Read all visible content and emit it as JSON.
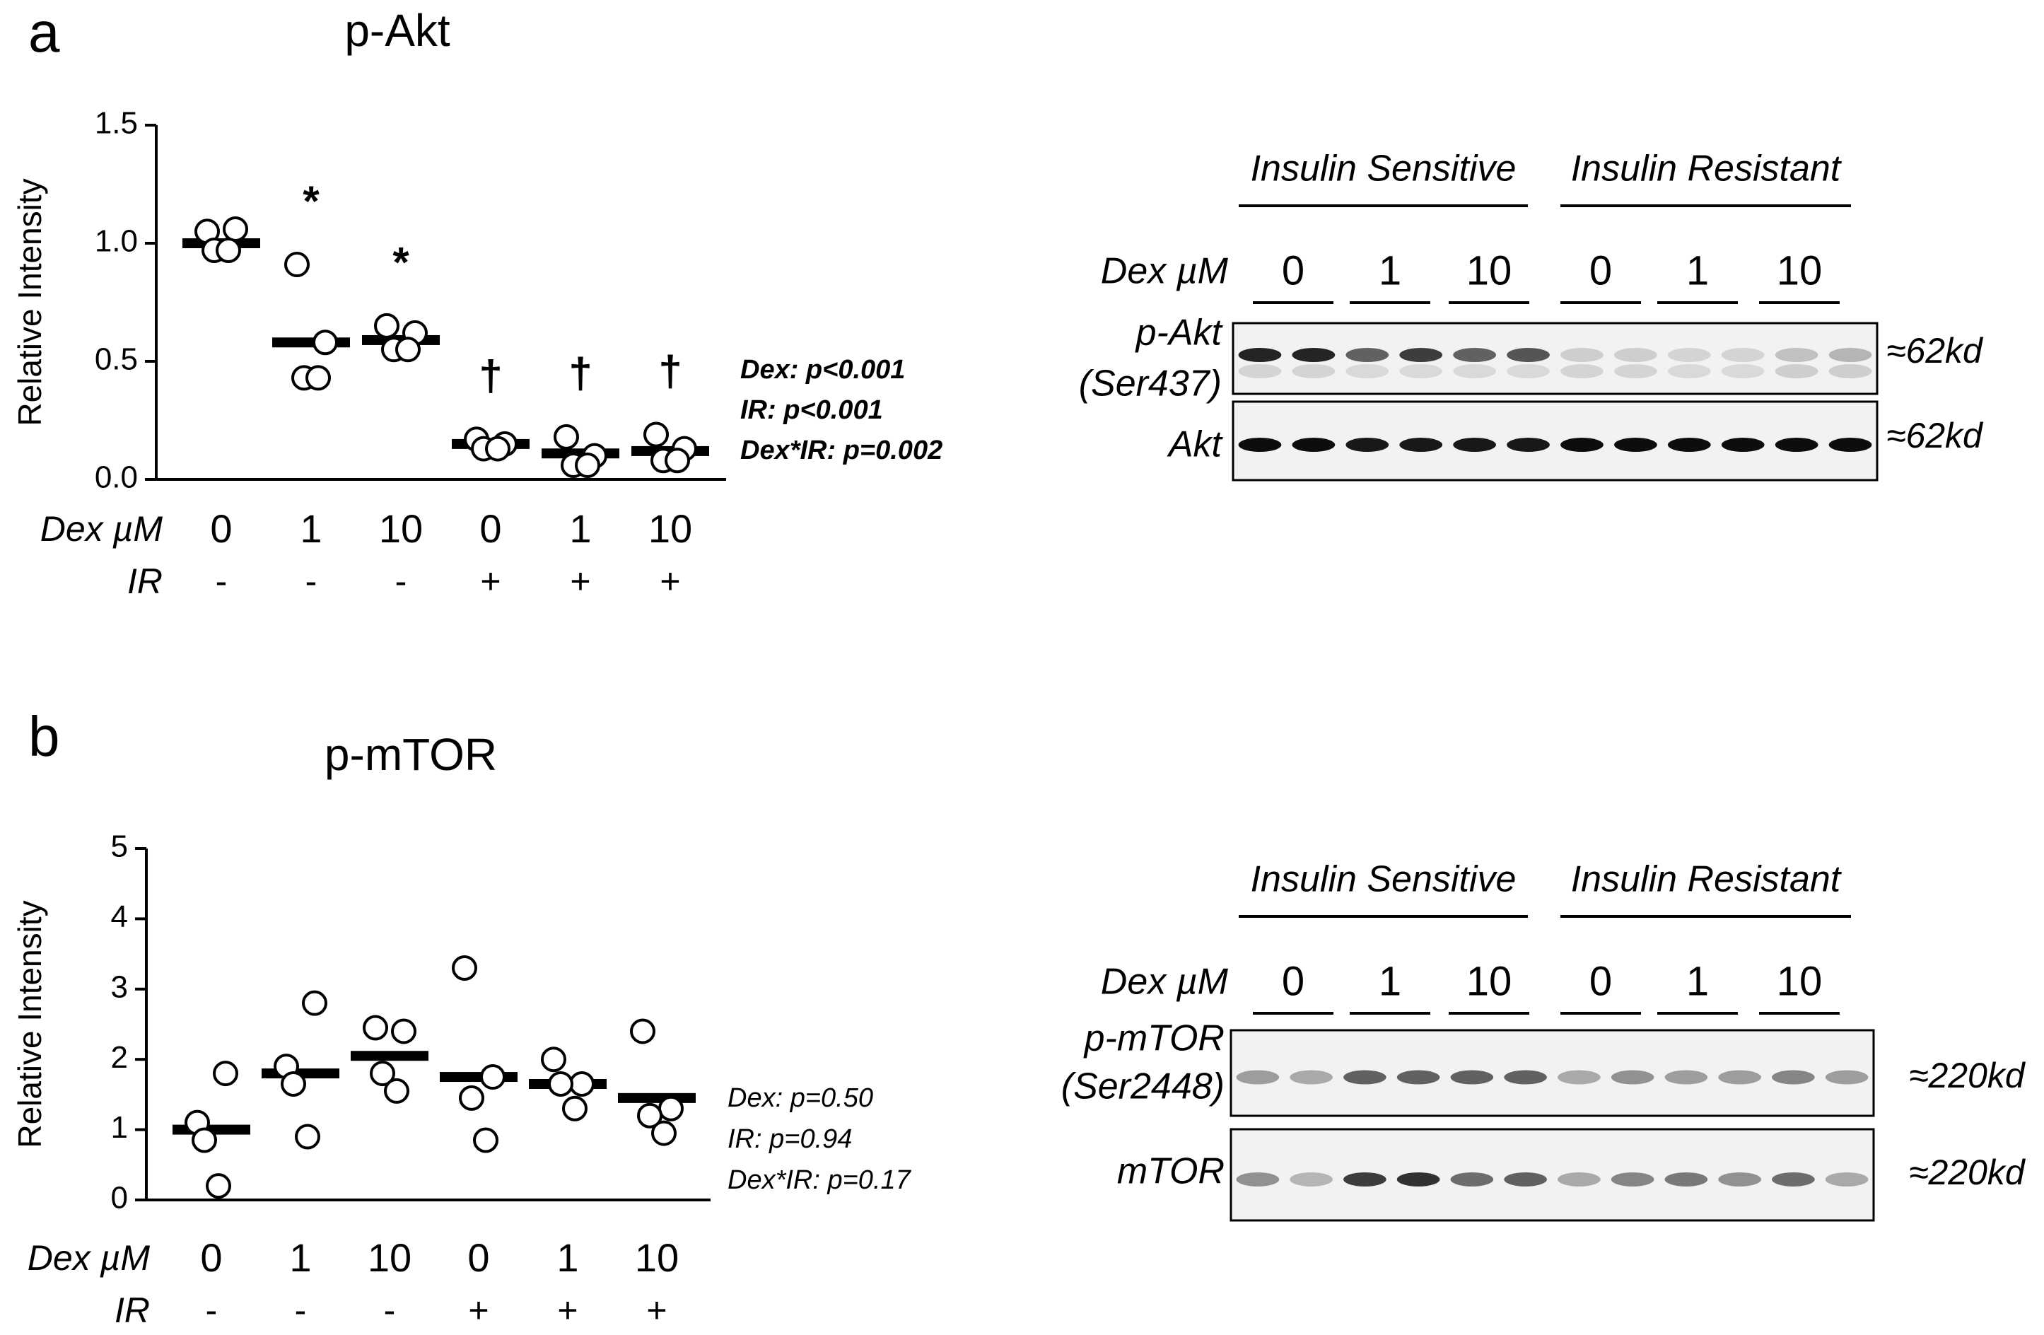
{
  "chart_data": [
    {
      "type": "dot",
      "panel": "a",
      "title": "p-Akt",
      "y_label": "Relative Intensity",
      "ylim": [
        0,
        1.5
      ],
      "yticks": [
        {
          "value": 0,
          "label": "0.0"
        },
        {
          "value": 0.5,
          "label": "0.5"
        },
        {
          "value": 1,
          "label": "1.0"
        },
        {
          "value": 1.5,
          "label": "1.5"
        }
      ],
      "category_row_label": "Dex µM",
      "categories": [
        "0",
        "1",
        "10",
        "0",
        "1",
        "10"
      ],
      "ir_label": "IR",
      "ir": [
        "-",
        "-",
        "-",
        "+",
        "+",
        "+"
      ],
      "points": [
        [
          1.05,
          1.06,
          0.97,
          0.97
        ],
        [
          0.91,
          0.58,
          0.43,
          0.43
        ],
        [
          0.65,
          0.62,
          0.55,
          0.55
        ],
        [
          0.17,
          0.15,
          0.13,
          0.13
        ],
        [
          0.18,
          0.1,
          0.06,
          0.06
        ],
        [
          0.19,
          0.13,
          0.08,
          0.08
        ]
      ],
      "means": [
        1.0,
        0.58,
        0.59,
        0.15,
        0.11,
        0.12
      ],
      "annotations": [
        {
          "category": 1,
          "text": "*"
        },
        {
          "category": 2,
          "text": "*"
        },
        {
          "category": 3,
          "text": "†"
        },
        {
          "category": 4,
          "text": "†"
        },
        {
          "category": 5,
          "text": "†"
        }
      ],
      "stats": [
        "Dex: p<0.001",
        "IR: p<0.001",
        "Dex*IR: p=0.002"
      ],
      "stats_bold": true
    },
    {
      "type": "dot",
      "panel": "b",
      "title": "p-mTOR",
      "y_label": "Relative Intensity",
      "ylim": [
        0,
        5
      ],
      "yticks": [
        0,
        1,
        2,
        3,
        4,
        5
      ],
      "category_row_label": "Dex µM",
      "categories": [
        "0",
        "1",
        "10",
        "0",
        "1",
        "10"
      ],
      "ir_label": "IR",
      "ir": [
        "-",
        "-",
        "-",
        "+",
        "+",
        "+"
      ],
      "points": [
        [
          1.1,
          1.8,
          0.85,
          0.2
        ],
        [
          1.9,
          2.8,
          1.65,
          0.9
        ],
        [
          2.45,
          2.4,
          1.8,
          1.55
        ],
        [
          3.3,
          1.75,
          1.45,
          0.85
        ],
        [
          2.0,
          1.65,
          1.65,
          1.3
        ],
        [
          2.4,
          1.3,
          1.2,
          0.95
        ]
      ],
      "means": [
        1.0,
        1.8,
        2.05,
        1.75,
        1.65,
        1.45
      ],
      "stats": [
        "Dex: p=0.50",
        "IR: p=0.94",
        "Dex*IR: p=0.17"
      ],
      "stats_bold": false
    }
  ],
  "blots": [
    {
      "groups": [
        "Insulin Sensitive",
        "Insulin Resistant"
      ],
      "dose_label": "Dex µM",
      "doses": [
        "0",
        "1",
        "10",
        "0",
        "1",
        "10"
      ],
      "rows": [
        {
          "label": [
            "p-Akt",
            "(Ser437)"
          ],
          "size": "≈62kd"
        },
        {
          "label": [
            "Akt"
          ],
          "size": "≈62kd"
        }
      ]
    },
    {
      "groups": [
        "Insulin Sensitive",
        "Insulin Resistant"
      ],
      "dose_label": "Dex µM",
      "doses": [
        "0",
        "1",
        "10",
        "0",
        "1",
        "10"
      ],
      "rows": [
        {
          "label": [
            "p-mTOR",
            "(Ser2448)"
          ],
          "size": "≈220kd"
        },
        {
          "label": [
            "mTOR"
          ],
          "size": "≈220kd"
        }
      ]
    }
  ]
}
